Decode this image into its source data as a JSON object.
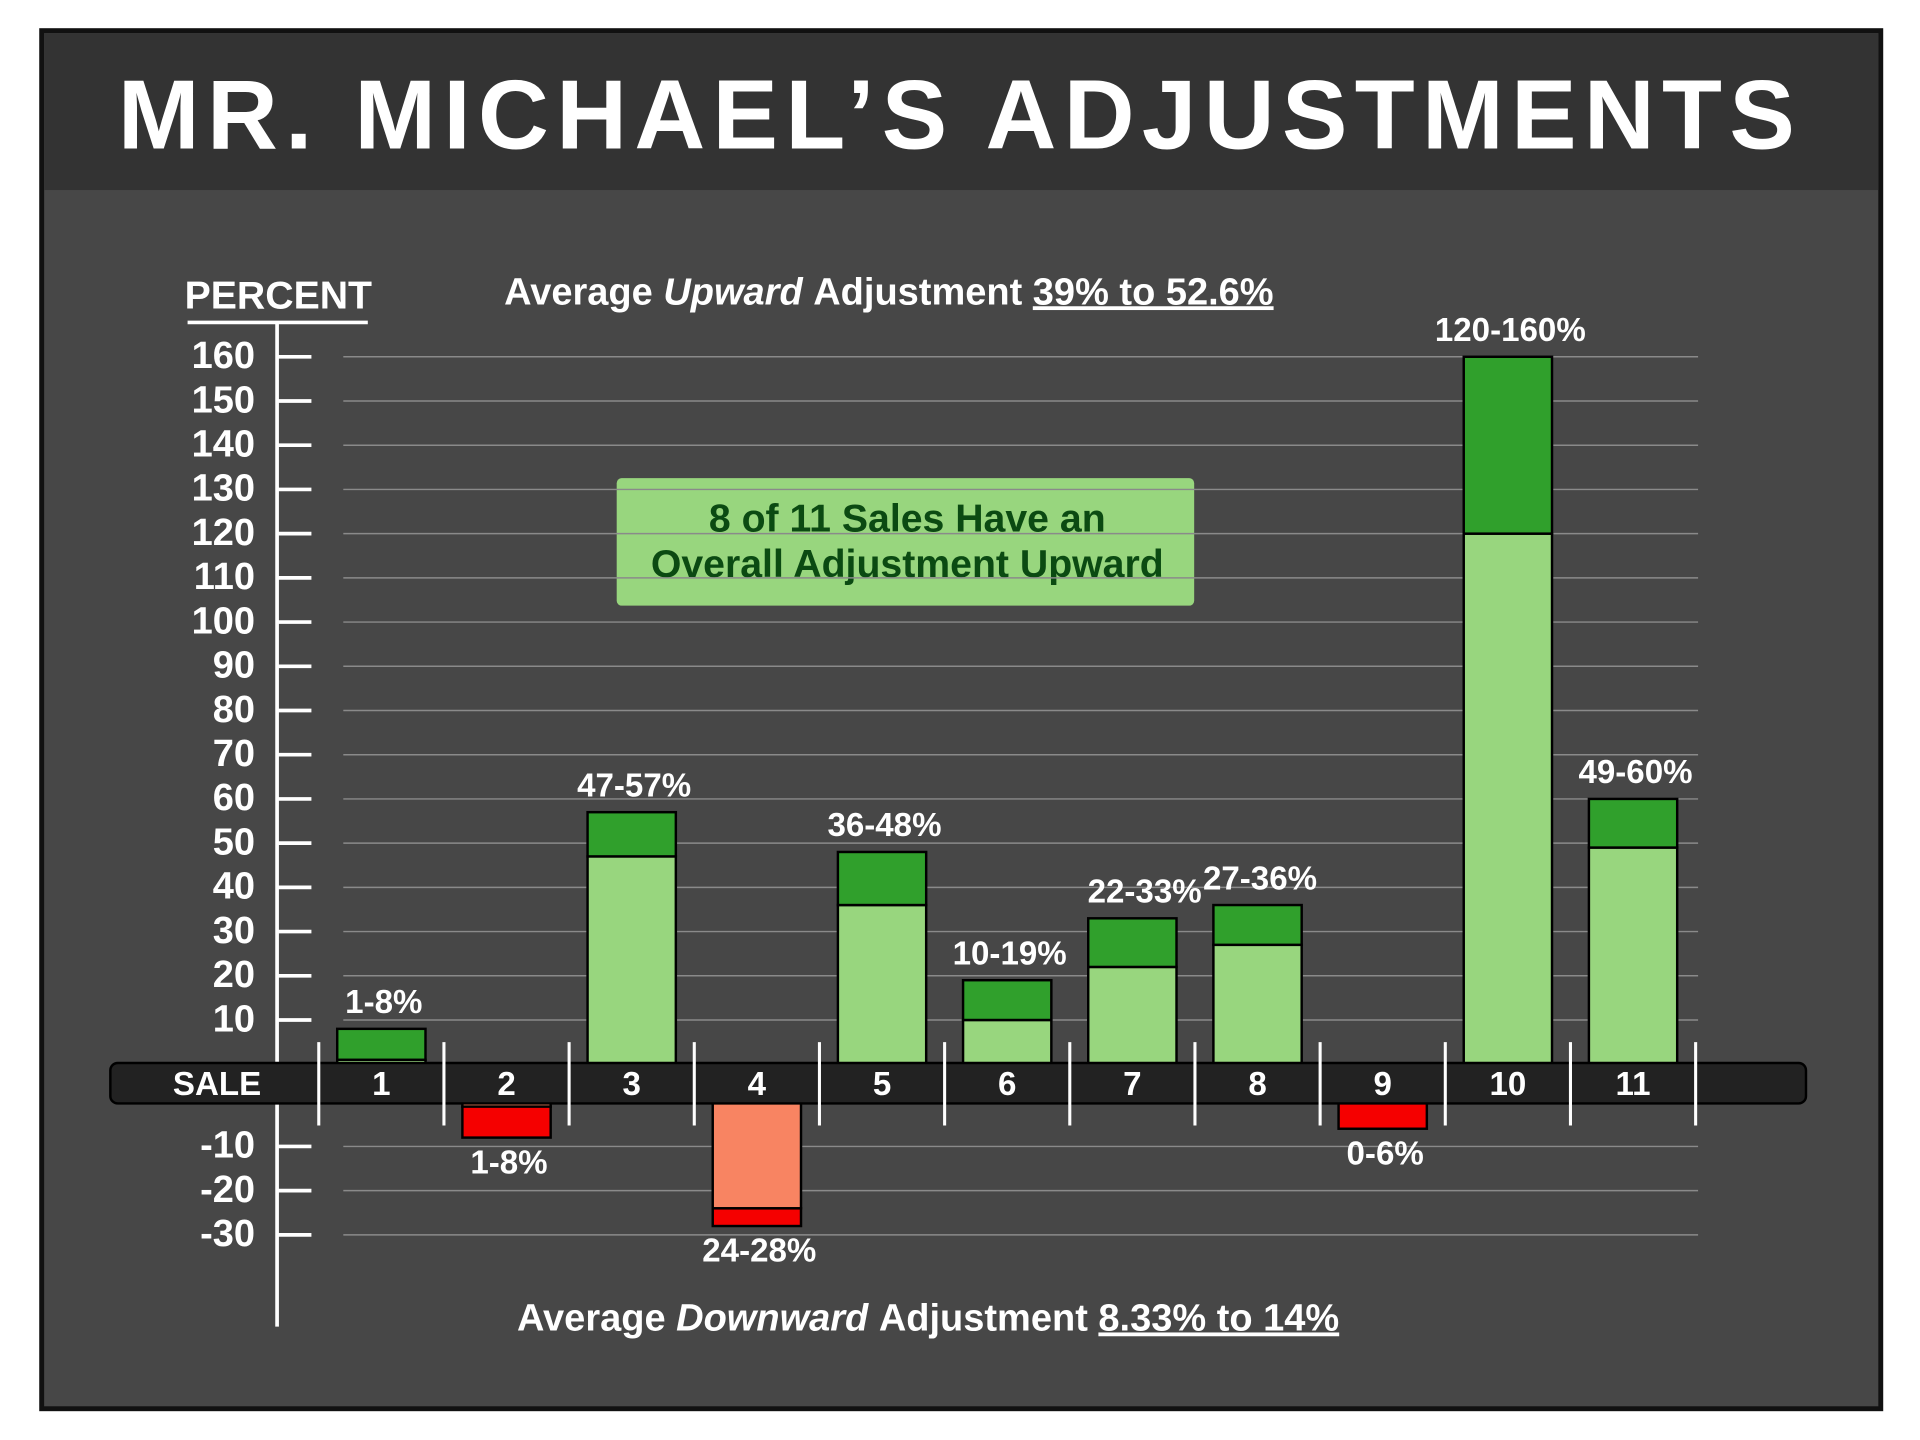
{
  "chart_data": {
    "type": "range_bar",
    "title": "MR. MICHAEL’S ADJUSTMENTS",
    "y_label": "PERCENT",
    "x_label": "SALE",
    "upward_note": {
      "lead": "Average",
      "emphasis": "Upward",
      "tail": "Adjustment",
      "range": "39% to 52.6%"
    },
    "downward_note": {
      "lead": "Average",
      "emphasis": "Downward",
      "tail": "Adjustment",
      "range": "8.33% to 14%"
    },
    "callout": [
      "8 of 11 Sales Have an",
      "Overall Adjustment Upward"
    ],
    "categories": [
      "1",
      "2",
      "3",
      "4",
      "5",
      "6",
      "7",
      "8",
      "9",
      "10",
      "11"
    ],
    "series": [
      {
        "color": "#98d67e",
        "negative_color": "#f88462",
        "values": [
          1,
          -1,
          47,
          -24,
          36,
          10,
          22,
          27,
          0,
          120,
          49
        ]
      },
      {
        "color": "#30a02c",
        "negative_color": "#f50000",
        "values": [
          8,
          -8,
          57,
          -28,
          48,
          19,
          33,
          36,
          -6,
          160,
          60
        ],
        "value_labels": [
          "1-8%",
          "1-8%",
          "47-57%",
          "24-28%",
          "36-48%",
          "10-19%",
          "22-33%",
          "27-36%",
          "0-6%",
          "120-160%",
          "49-60%"
        ]
      }
    ],
    "ylim": [
      -50,
      160
    ],
    "yticks": [
      -30,
      -20,
      -10,
      10,
      20,
      30,
      40,
      50,
      60,
      70,
      80,
      90,
      100,
      110,
      120,
      130,
      140,
      150,
      160
    ],
    "grid": true
  }
}
